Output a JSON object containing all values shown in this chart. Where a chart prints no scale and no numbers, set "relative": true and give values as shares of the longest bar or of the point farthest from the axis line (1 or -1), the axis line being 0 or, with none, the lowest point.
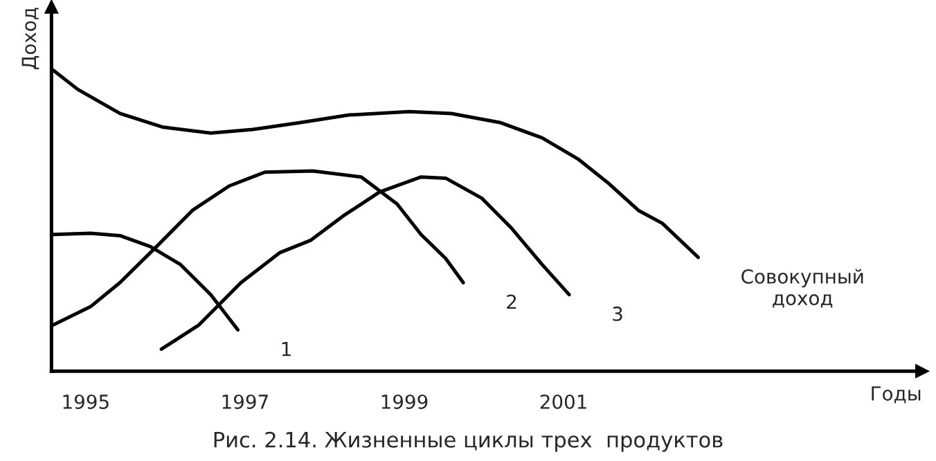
{
  "chart_data": {
    "type": "line",
    "relative": true,
    "xlabel": "Годы",
    "ylabel": "Доход",
    "annotations": [
      "Рис. 2.14. Жизненные циклы трех  продуктов"
    ],
    "xlim": [
      1994.57,
      2005.5
    ],
    "xticks": [
      1995,
      1997,
      1999,
      2001
    ],
    "grid": false,
    "legend": false,
    "marker": "none",
    "line_style": "solid",
    "series": [
      {
        "name": "Совокупный доход",
        "color": "#000000",
        "x": [
          1994.59,
          1994.9,
          1995.43,
          1995.96,
          1996.57,
          1997.1,
          1997.7,
          1998.31,
          1999.06,
          1999.59,
          2000.2,
          2000.73,
          2001.18,
          2001.56,
          2001.94,
          2002.24,
          2002.69
        ],
        "values": [
          1.0,
          0.936,
          0.856,
          0.811,
          0.791,
          0.803,
          0.826,
          0.851,
          0.862,
          0.856,
          0.826,
          0.775,
          0.705,
          0.625,
          0.534,
          0.491,
          0.378
        ]
      },
      {
        "name": "1",
        "color": "#000000",
        "x": [
          1994.59,
          1995.06,
          1995.43,
          1995.81,
          1996.19,
          1996.57,
          1996.91
        ],
        "values": [
          0.454,
          0.458,
          0.45,
          0.414,
          0.354,
          0.254,
          0.137
        ]
      },
      {
        "name": "2",
        "color": "#000000",
        "x": [
          1994.59,
          1995.06,
          1995.43,
          1995.89,
          1996.34,
          1996.8,
          1997.25,
          1997.85,
          1998.46,
          1998.91,
          1999.21,
          1999.52,
          1999.74
        ],
        "values": [
          0.153,
          0.214,
          0.294,
          0.414,
          0.534,
          0.615,
          0.661,
          0.665,
          0.645,
          0.555,
          0.454,
          0.374,
          0.294
        ]
      },
      {
        "name": "3",
        "color": "#000000",
        "x": [
          1995.95,
          1996.42,
          1996.95,
          1997.44,
          1997.82,
          1998.23,
          1998.69,
          1999.21,
          1999.52,
          1999.97,
          2000.35,
          2000.73,
          2001.07
        ],
        "values": [
          0.073,
          0.153,
          0.294,
          0.394,
          0.434,
          0.515,
          0.595,
          0.645,
          0.641,
          0.575,
          0.474,
          0.354,
          0.254
        ]
      }
    ]
  }
}
